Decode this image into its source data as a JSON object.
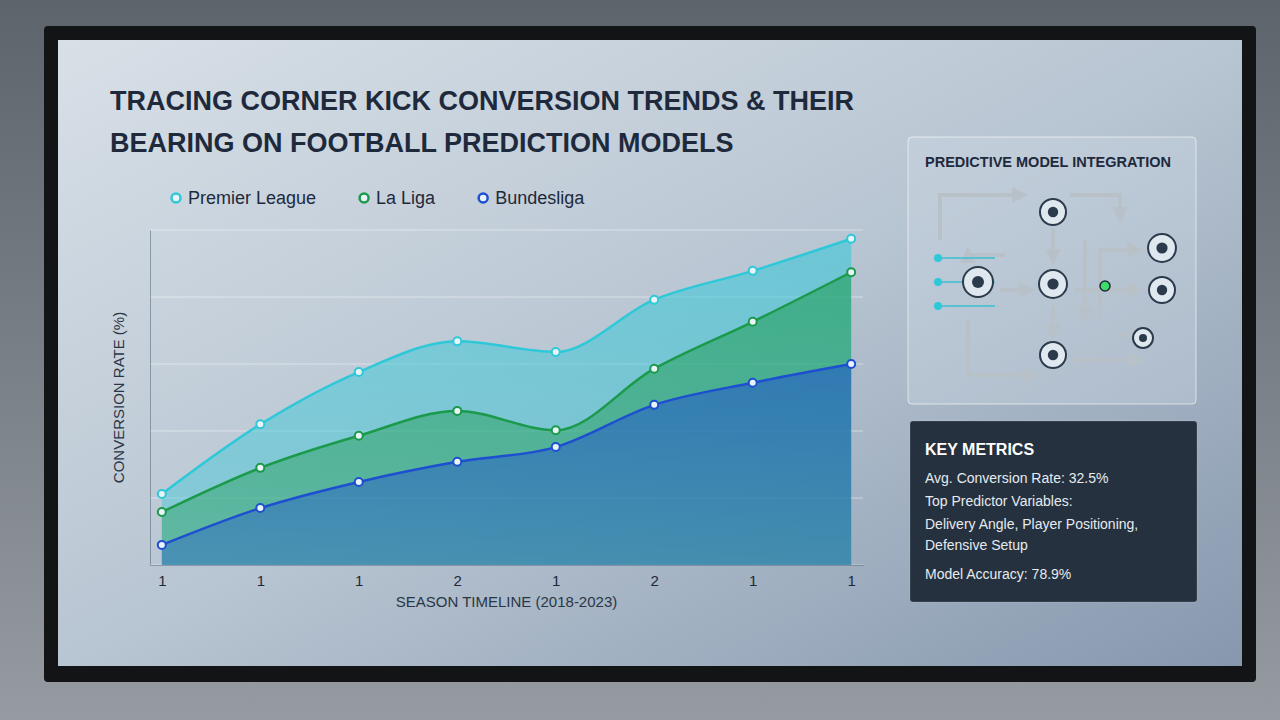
{
  "chart_data": {
    "type": "line",
    "title": "TRACING CORNER KICK CONVERSION TRENDS & THEIR BEARING ON FOOTBALL PREDICTION MODELS",
    "x_label": "SEASON TIMELINE (2018-2023)",
    "y_label": "CONVERSION RATE (%)",
    "categories": [
      "1",
      "1",
      "1",
      "2",
      "1",
      "2",
      "1",
      "1"
    ],
    "series": [
      {
        "name": "Premier League",
        "color": "#2ec8d8",
        "values": [
          10.6,
          21.0,
          28.8,
          33.4,
          31.8,
          39.6,
          43.9,
          48.7
        ]
      },
      {
        "name": "La Liga",
        "color": "#1a9a4a",
        "values": [
          7.9,
          14.5,
          19.3,
          23.0,
          20.1,
          29.3,
          36.3,
          43.7
        ]
      },
      {
        "name": "Bundesliga",
        "color": "#1e4fd0",
        "values": [
          3.0,
          8.5,
          12.4,
          15.4,
          17.6,
          23.9,
          27.2,
          30.0
        ]
      }
    ],
    "ylim": [
      0,
      50
    ],
    "yticks": [
      0,
      10,
      20,
      30,
      40,
      50
    ],
    "grid": true,
    "legend": "top-left",
    "tick_labels": "x",
    "marker": "circle"
  },
  "model_panel": {
    "title": "PREDICTIVE MODEL INTEGRATION"
  },
  "key_metrics": {
    "title": "KEY METRICS",
    "lines": [
      "Avg. Conversion Rate: 32.5%",
      "Top Predictor Variables:",
      "Delivery Angle, Player Positioning, Defensive Setup",
      "Model Accuracy: 78.9%"
    ]
  }
}
